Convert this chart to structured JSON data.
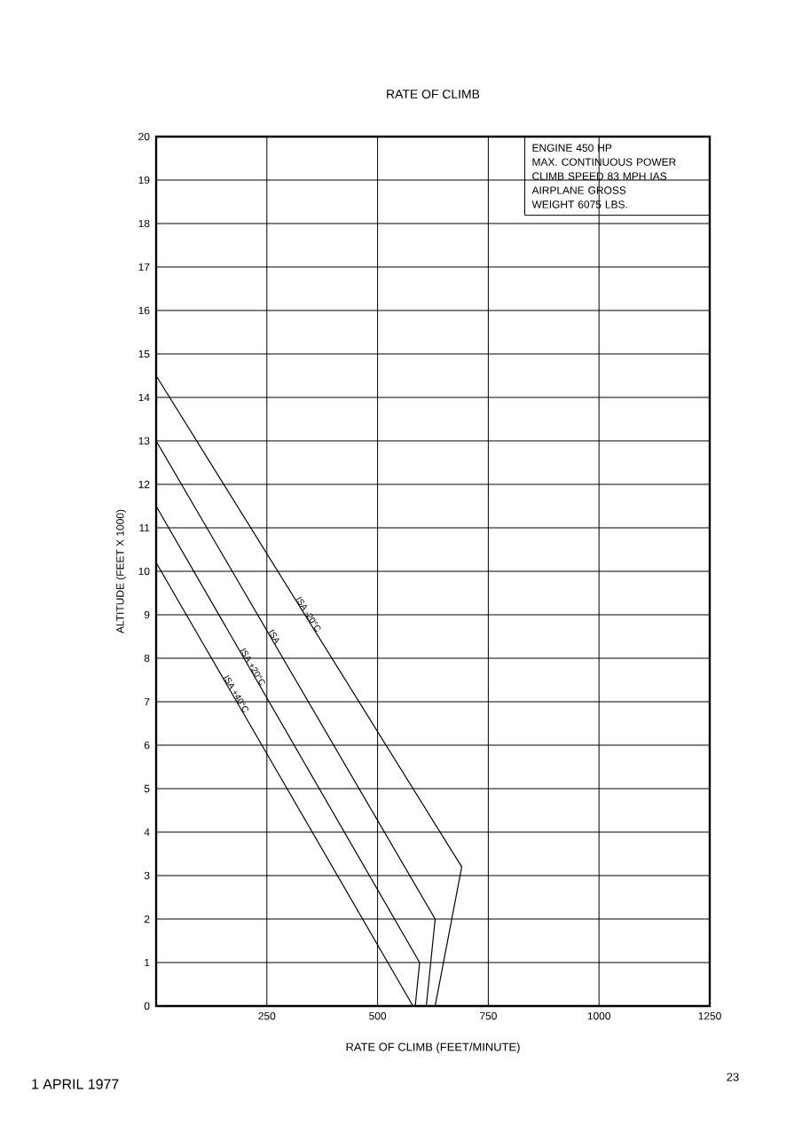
{
  "chart_data": {
    "type": "line",
    "title": "RATE OF CLIMB",
    "xlabel": "RATE OF CLIMB (FEET/MINUTE)",
    "ylabel": "ALTITUDE (FEET X 1000)",
    "xlim": [
      0,
      1250
    ],
    "ylim": [
      0,
      20
    ],
    "xticks": [
      250,
      500,
      750,
      1000,
      1250
    ],
    "yticks": [
      0,
      1,
      2,
      3,
      4,
      5,
      6,
      7,
      8,
      9,
      10,
      11,
      12,
      13,
      14,
      15,
      16,
      17,
      18,
      19,
      20
    ],
    "grid": true,
    "marker": "none",
    "series": [
      {
        "name": "ISA -20°C",
        "color": "#000000",
        "x": [
          0,
          690,
          630
        ],
        "values": [
          14.5,
          3.2,
          0
        ]
      },
      {
        "name": "ISA",
        "color": "#000000",
        "x": [
          0,
          630,
          610
        ],
        "values": [
          13,
          2,
          0
        ]
      },
      {
        "name": "ISA +20°C",
        "color": "#000000",
        "x": [
          0,
          595,
          585
        ],
        "values": [
          11.5,
          1,
          0
        ]
      },
      {
        "name": "ISA +40°C",
        "color": "#000000",
        "x": [
          0,
          580
        ],
        "values": [
          10.2,
          0
        ]
      }
    ],
    "annotations": [
      "ENGINE 450 HP",
      "MAX. CONTINUOUS POWER",
      "CLIMB SPEED 83 MPH IAS",
      "AIRPLANE GROSS",
      "WEIGHT 6075 LBS.",
      "1 APRIL 1977",
      "23"
    ]
  }
}
